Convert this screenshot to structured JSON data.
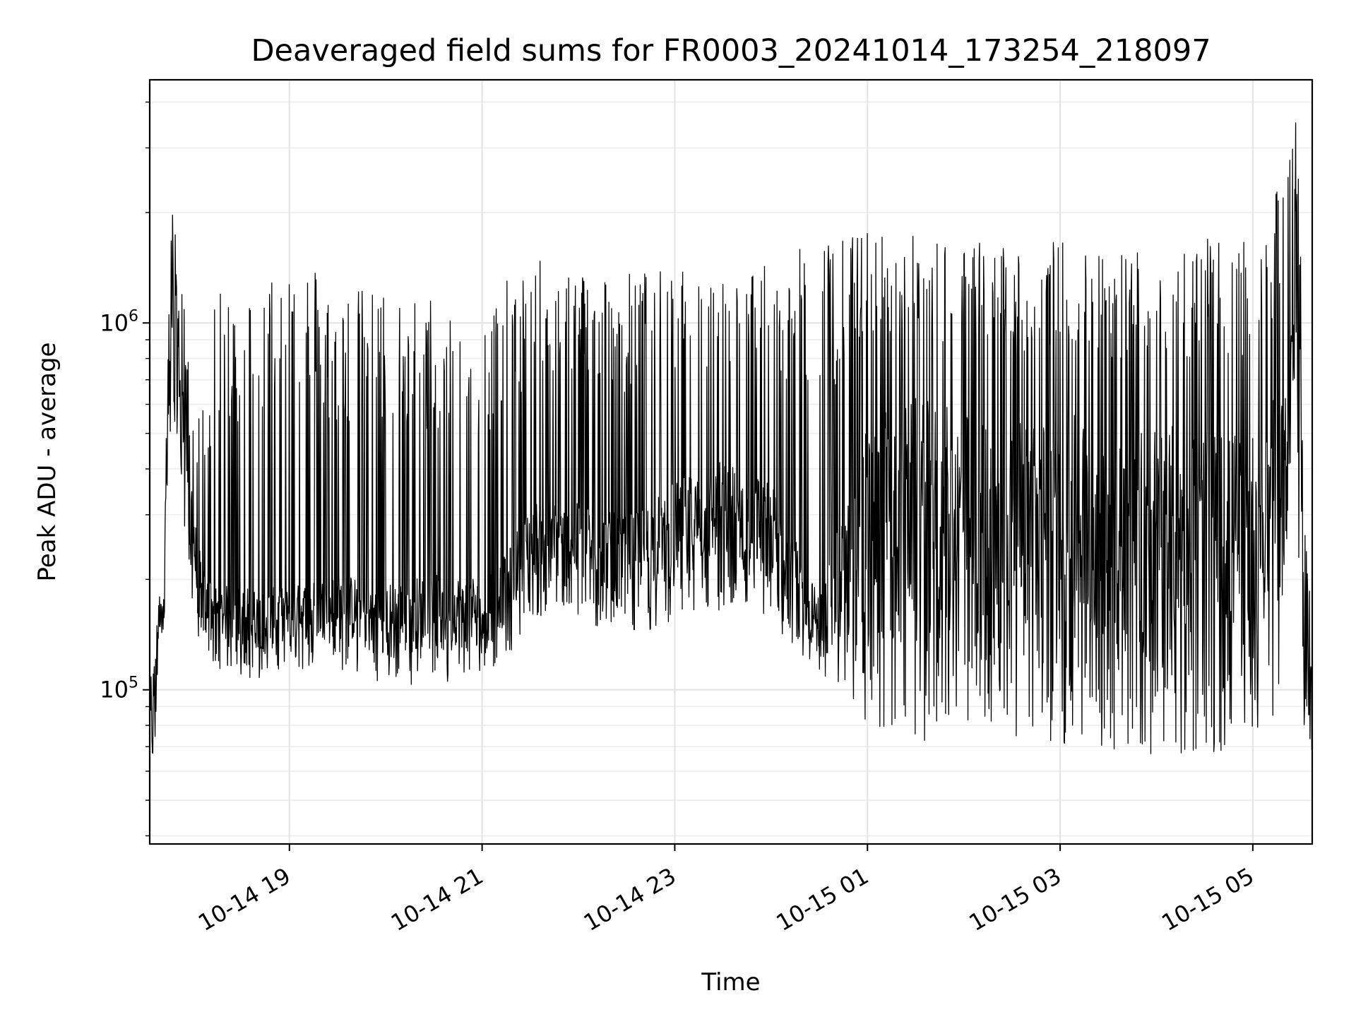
{
  "chart_data": {
    "type": "line",
    "title": "Deaveraged field sums for FR0003_20241014_173254_218097",
    "xlabel": "Time",
    "ylabel": "Peak ADU - average",
    "yscale": "log",
    "grid": true,
    "line_color": "#000000",
    "x_range": [
      "2024-10-14 17:33",
      "2024-10-15 05:37"
    ],
    "ylim": [
      38000,
      4600000
    ],
    "x_ticks": [
      {
        "value": "2024-10-14 19:00",
        "label": "10-14 19"
      },
      {
        "value": "2024-10-14 21:00",
        "label": "10-14 21"
      },
      {
        "value": "2024-10-14 23:00",
        "label": "10-14 23"
      },
      {
        "value": "2024-10-15 01:00",
        "label": "10-15 01"
      },
      {
        "value": "2024-10-15 03:00",
        "label": "10-15 03"
      },
      {
        "value": "2024-10-15 05:00",
        "label": "10-15 05"
      }
    ],
    "y_ticks": [
      {
        "value": 100000,
        "base": "10",
        "exp": "5"
      },
      {
        "value": 1000000,
        "base": "10",
        "exp": "6"
      }
    ],
    "series": [
      {
        "x": [
          "2024-10-14 17:33",
          "2024-10-14 17:35",
          "2024-10-14 17:38",
          "2024-10-14 17:42",
          "2024-10-14 17:46",
          "2024-10-14 17:50",
          "2024-10-14 17:54",
          "2024-10-14 17:58",
          "2024-10-14 18:02",
          "2024-10-14 18:06",
          "2024-10-14 18:10",
          "2024-10-14 18:15",
          "2024-10-14 18:25",
          "2024-10-14 18:40",
          "2024-10-14 19:00",
          "2024-10-14 19:30",
          "2024-10-14 20:00",
          "2024-10-14 20:30",
          "2024-10-14 21:00",
          "2024-10-14 21:15",
          "2024-10-14 21:30",
          "2024-10-14 22:00",
          "2024-10-14 22:30",
          "2024-10-14 23:00",
          "2024-10-14 23:30",
          "2024-10-15 00:00",
          "2024-10-15 00:30",
          "2024-10-15 01:00",
          "2024-10-15 01:30",
          "2024-10-15 02:00",
          "2024-10-15 02:30",
          "2024-10-15 03:00",
          "2024-10-15 03:30",
          "2024-10-15 04:00",
          "2024-10-15 04:30",
          "2024-10-15 05:00",
          "2024-10-15 05:15",
          "2024-10-15 05:25",
          "2024-10-15 05:30",
          "2024-10-15 05:33",
          "2024-10-15 05:37"
        ],
        "low": [
          60000,
          48000,
          110000,
          150000,
          400000,
          500000,
          300000,
          200000,
          130000,
          125000,
          120000,
          115000,
          110000,
          105000,
          115000,
          110000,
          105000,
          100000,
          110000,
          120000,
          160000,
          150000,
          140000,
          150000,
          160000,
          150000,
          110000,
          80000,
          72000,
          75000,
          75000,
          70000,
          68000,
          65000,
          65000,
          75000,
          85000,
          500000,
          90000,
          70000,
          65000
        ],
        "typical": [
          90000,
          80000,
          150000,
          230000,
          900000,
          1100000,
          550000,
          400000,
          230000,
          190000,
          180000,
          170000,
          170000,
          165000,
          170000,
          180000,
          170000,
          175000,
          180000,
          200000,
          280000,
          270000,
          250000,
          300000,
          340000,
          300000,
          160000,
          350000,
          380000,
          360000,
          340000,
          350000,
          340000,
          330000,
          320000,
          330000,
          400000,
          900000,
          500000,
          120000,
          100000
        ],
        "high": [
          110000,
          110000,
          170000,
          280000,
          1900000,
          2300000,
          1200000,
          700000,
          500000,
          700000,
          900000,
          1200000,
          1300000,
          1250000,
          1800000,
          1250000,
          1250000,
          1200000,
          1100000,
          1300000,
          1500000,
          1450000,
          1400000,
          1400000,
          1350000,
          1450000,
          1700000,
          1800000,
          1750000,
          1700000,
          1650000,
          1700000,
          1600000,
          1700000,
          1700000,
          1650000,
          2300000,
          4500000,
          2300000,
          250000,
          180000
        ]
      }
    ]
  }
}
